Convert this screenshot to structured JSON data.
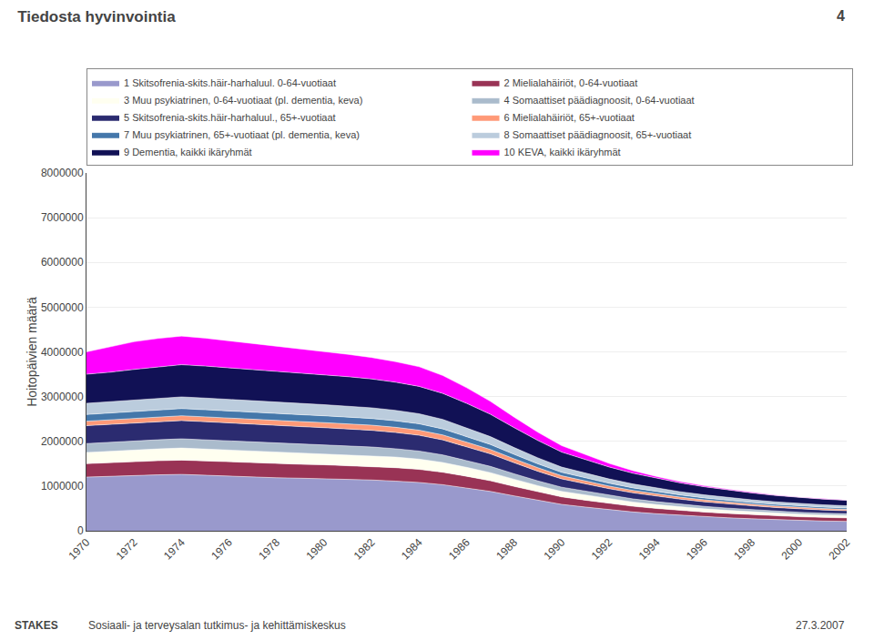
{
  "chart_data": {
    "type": "area",
    "stacked": true,
    "title": "Tiedosta hyvinvointia",
    "annotations": [
      "4",
      "STAKES",
      "Sosiaali- ja terveysalan tutkimus- ja kehittämiskeskus",
      "27.3.2007"
    ],
    "ylabel": "Hoitopäivien määrä",
    "x": [
      1970,
      1971,
      1972,
      1973,
      1974,
      1975,
      1976,
      1977,
      1978,
      1979,
      1980,
      1981,
      1982,
      1983,
      1984,
      1985,
      1986,
      1987,
      1988,
      1989,
      1990,
      1991,
      1992,
      1993,
      1994,
      1995,
      1996,
      1997,
      1998,
      1999,
      2000,
      2001,
      2002
    ],
    "xlim": [
      1970,
      2002
    ],
    "xticks": [
      1970,
      1972,
      1974,
      1976,
      1978,
      1980,
      1982,
      1984,
      1986,
      1988,
      1990,
      1992,
      1994,
      1996,
      1998,
      2000,
      2002
    ],
    "ylim": [
      0,
      8000000
    ],
    "yticks": [
      0,
      1000000,
      2000000,
      3000000,
      4000000,
      5000000,
      6000000,
      7000000,
      8000000
    ],
    "grid": true,
    "series": [
      {
        "name": "1 Skitsofrenia-skits.häir-harhaluul. 0-64-vuotiaat",
        "color": "#9999CC",
        "values": [
          1200000,
          1220000,
          1240000,
          1250000,
          1260000,
          1240000,
          1220000,
          1200000,
          1185000,
          1175000,
          1165000,
          1150000,
          1135000,
          1110000,
          1080000,
          1030000,
          960000,
          880000,
          780000,
          680000,
          590000,
          530000,
          470000,
          420000,
          380000,
          345000,
          315000,
          290000,
          268000,
          248000,
          230000,
          218000,
          210000
        ]
      },
      {
        "name": "2 Mielialahäiriöt, 0-64-vuotiaat",
        "color": "#993355",
        "values": [
          300000,
          305000,
          310000,
          315000,
          320000,
          320000,
          318000,
          316000,
          314000,
          312000,
          310000,
          308000,
          305000,
          300000,
          292000,
          278000,
          258000,
          238000,
          212000,
          188000,
          167000,
          153000,
          140000,
          128000,
          118000,
          110000,
          103000,
          97000,
          92000,
          87000,
          83000,
          80000,
          78000
        ]
      },
      {
        "name": "3 Muu psykiatrinen, 0-64-vuotiaat (pl. dementia, keva)",
        "color": "#FFFFF0",
        "values": [
          250000,
          255000,
          260000,
          265000,
          270000,
          268000,
          265000,
          262000,
          259000,
          255000,
          250000,
          247000,
          243000,
          238000,
          230000,
          218000,
          200000,
          182000,
          160000,
          140000,
          123000,
          113000,
          103000,
          95000,
          87000,
          80000,
          74000,
          69000,
          64000,
          60000,
          57000,
          55000,
          53000
        ]
      },
      {
        "name": "4 Somaattiset päädiagnoosit, 0-64-vuotiaat",
        "color": "#AABBCC",
        "values": [
          200000,
          200000,
          202000,
          204000,
          206000,
          205000,
          203000,
          201000,
          199000,
          197000,
          195000,
          193000,
          190000,
          186000,
          180000,
          170000,
          155000,
          140000,
          122000,
          107000,
          94000,
          86000,
          77000,
          70000,
          64000,
          59000,
          54000,
          50000,
          47000,
          44000,
          42000,
          40000,
          39000
        ]
      },
      {
        "name": "5 Skitsofrenia-skits.häir-harhaluul., 65+-vuotiaat",
        "color": "#2B2B70",
        "values": [
          400000,
          400000,
          402000,
          405000,
          408000,
          406000,
          402000,
          398000,
          394000,
          390000,
          385000,
          380000,
          373000,
          364000,
          353000,
          335000,
          308000,
          280000,
          247000,
          215000,
          185000,
          168000,
          150000,
          135000,
          122000,
          111000,
          102000,
          94000,
          87000,
          81000,
          76000,
          72000,
          68000
        ]
      },
      {
        "name": "6 Mielialahäiriöt, 65+-vuotiaat",
        "color": "#FF9977",
        "values": [
          100000,
          101000,
          103000,
          105000,
          107000,
          108000,
          109000,
          110000,
          111000,
          112000,
          113000,
          114000,
          115000,
          115000,
          114000,
          111000,
          105000,
          98000,
          88000,
          79000,
          71000,
          65000,
          59000,
          54000,
          50000,
          46000,
          43000,
          40000,
          37000,
          35000,
          33000,
          32000,
          31000
        ]
      },
      {
        "name": "7 Muu psykiatrinen, 65+-vuotiaat (pl. dementia, keva)",
        "color": "#4477AA",
        "values": [
          150000,
          152000,
          155000,
          157000,
          160000,
          159000,
          158000,
          157000,
          156000,
          155000,
          153000,
          151000,
          149000,
          146000,
          142000,
          135000,
          124000,
          112000,
          99000,
          87000,
          77000,
          70000,
          63000,
          57000,
          52000,
          48000,
          44000,
          41000,
          38000,
          36000,
          34000,
          33000,
          32000
        ]
      },
      {
        "name": "8 Somaattiset päädiagnoosit, 65+-vuotiaat",
        "color": "#BBCCDD",
        "values": [
          250000,
          252000,
          255000,
          258000,
          262000,
          261000,
          259000,
          257000,
          255000,
          252000,
          248000,
          244000,
          239000,
          233000,
          225000,
          212000,
          194000,
          175000,
          153000,
          134000,
          117000,
          107000,
          96000,
          87000,
          80000,
          73000,
          68000,
          63000,
          59000,
          55000,
          52000,
          50000,
          48000
        ]
      },
      {
        "name": "9 Dementia, kaikki ikäryhmät",
        "color": "#111155",
        "values": [
          650000,
          660000,
          680000,
          700000,
          720000,
          715000,
          708000,
          700000,
          692000,
          682000,
          670000,
          658000,
          645000,
          630000,
          612000,
          582000,
          545000,
          500000,
          445000,
          388000,
          335000,
          300000,
          268000,
          240000,
          218000,
          198000,
          181000,
          167000,
          155000,
          144000,
          135000,
          128000,
          122000
        ]
      },
      {
        "name": "10 KEVA, kaikki ikäryhmät",
        "color": "#FF00FF",
        "values": [
          500000,
          570000,
          620000,
          640000,
          640000,
          625000,
          605000,
          585000,
          565000,
          545000,
          522000,
          500000,
          480000,
          460000,
          440000,
          400000,
          350000,
          290000,
          235000,
          185000,
          145000,
          110000,
          80000,
          58000,
          42000,
          31000,
          23000,
          18000,
          14000,
          11000,
          9000,
          7000,
          6000
        ]
      }
    ]
  }
}
